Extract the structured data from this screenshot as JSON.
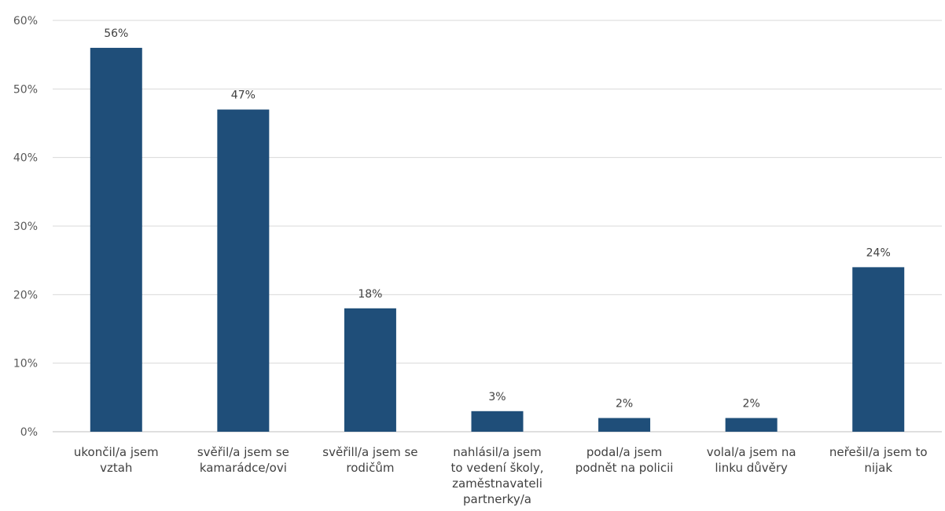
{
  "chart_data": {
    "type": "bar",
    "title": "",
    "xlabel": "",
    "ylabel": "",
    "ylim": [
      0,
      60
    ],
    "yticks": [
      0,
      10,
      20,
      30,
      40,
      50,
      60
    ],
    "ytick_labels": [
      "0%",
      "10%",
      "20%",
      "30%",
      "40%",
      "50%",
      "60%"
    ],
    "grid": true,
    "legend": "none",
    "bar_color": "#1f4e79",
    "categories": [
      [
        "ukončil/a jsem",
        "vztah"
      ],
      [
        "svěřil/a jsem se",
        "kamarádce/ovi"
      ],
      [
        "svěřill/a jsem se",
        "rodičům"
      ],
      [
        "nahlásil/a jsem",
        "to vedení školy,",
        "zaměstnavateli",
        "partnerky/a"
      ],
      [
        "podal/a jsem",
        "podnět na policii"
      ],
      [
        "volal/a jsem na",
        "linku důvěry"
      ],
      [
        "neřešil/a jsem to",
        "nijak"
      ]
    ],
    "values": [
      56,
      47,
      18,
      3,
      2,
      2,
      24
    ],
    "value_labels": [
      "56%",
      "47%",
      "18%",
      "3%",
      "2%",
      "2%",
      "24%"
    ]
  }
}
